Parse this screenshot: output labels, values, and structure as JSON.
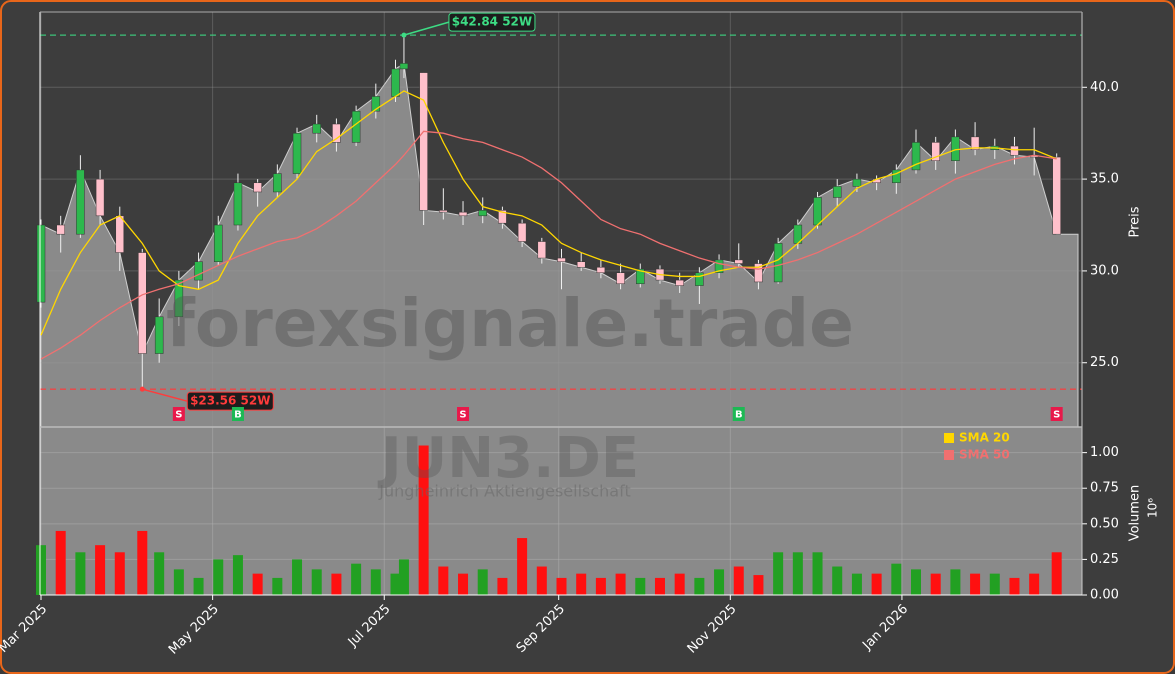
{
  "chart_data": [
    {
      "type": "candlestick",
      "watermark": "forexsignale.trade",
      "ticker": "JUN3.DE",
      "company": "Jungheinrich Aktiengesellschaft",
      "ylabel": "Preis",
      "x": [
        0,
        7,
        14,
        21,
        28,
        36,
        42,
        49,
        56,
        63,
        70,
        77,
        84,
        91,
        98,
        105,
        112,
        119,
        126,
        129,
        136,
        143,
        150,
        157,
        164,
        171,
        178,
        185,
        192,
        199,
        206,
        213,
        220,
        227,
        234,
        241,
        248,
        255,
        262,
        269,
        276,
        283,
        290,
        297,
        304,
        311,
        318,
        325,
        332,
        339,
        346,
        353,
        361
      ],
      "open": [
        28.3,
        32.5,
        32.0,
        35.0,
        33.0,
        31.0,
        25.5,
        27.5,
        29.5,
        30.5,
        32.5,
        34.8,
        34.3,
        35.3,
        37.5,
        38.0,
        37.0,
        38.7,
        39.5,
        41.0,
        40.8,
        33.3,
        33.2,
        33.0,
        33.3,
        32.6,
        31.6,
        30.7,
        30.5,
        30.2,
        29.9,
        29.3,
        30.1,
        29.5,
        29.2,
        29.9,
        30.6,
        30.4,
        29.4,
        31.5,
        32.5,
        34.0,
        34.6,
        35.0,
        34.8,
        35.5,
        37.0,
        36.0,
        37.3,
        36.6,
        36.8,
        36.3,
        36.2
      ],
      "high": [
        32.8,
        33.0,
        36.3,
        35.5,
        33.5,
        31.2,
        28.5,
        30.0,
        31.0,
        33.0,
        35.3,
        35.0,
        35.8,
        37.8,
        38.5,
        38.3,
        39.0,
        40.2,
        41.5,
        42.84,
        40.8,
        34.5,
        33.8,
        34.0,
        33.5,
        32.8,
        31.8,
        31.2,
        31.0,
        30.6,
        30.4,
        30.4,
        30.3,
        29.9,
        30.2,
        30.9,
        31.5,
        30.6,
        31.8,
        32.8,
        34.3,
        35.0,
        35.3,
        35.2,
        35.8,
        37.7,
        37.3,
        37.7,
        38.1,
        37.2,
        37.3,
        37.8,
        36.4
      ],
      "low": [
        28.0,
        31.0,
        31.8,
        32.5,
        30.0,
        23.56,
        25.0,
        27.0,
        29.0,
        30.3,
        32.2,
        33.5,
        34.0,
        35.0,
        37.0,
        36.5,
        36.8,
        38.3,
        39.2,
        40.5,
        32.5,
        32.8,
        32.5,
        32.6,
        32.3,
        31.3,
        30.4,
        29.0,
        30.0,
        29.6,
        29.0,
        29.1,
        29.3,
        28.8,
        28.2,
        29.6,
        30.2,
        29.0,
        29.3,
        31.2,
        32.3,
        33.5,
        34.3,
        34.4,
        34.2,
        35.3,
        35.5,
        35.3,
        36.3,
        36.1,
        35.8,
        35.2,
        32.0
      ],
      "close": [
        32.5,
        32.0,
        35.5,
        33.0,
        31.0,
        25.5,
        27.5,
        29.5,
        30.5,
        32.5,
        34.8,
        34.3,
        35.3,
        37.5,
        38.0,
        37.0,
        38.7,
        39.5,
        41.0,
        41.3,
        33.3,
        33.2,
        33.0,
        33.3,
        32.6,
        31.6,
        30.7,
        30.5,
        30.2,
        29.9,
        29.3,
        30.1,
        29.5,
        29.2,
        29.9,
        30.6,
        30.4,
        29.4,
        31.5,
        32.5,
        34.0,
        34.6,
        35.0,
        34.8,
        35.5,
        37.0,
        36.0,
        37.3,
        36.6,
        36.8,
        36.3,
        36.2,
        32.0
      ],
      "colors": {
        "up": "#2db84d",
        "down": "#ffc0cb"
      },
      "series": [
        {
          "name": "SMA 20",
          "color": "#ffd700",
          "values": [
            26.5,
            29,
            31,
            32.5,
            33,
            31.5,
            30,
            29.2,
            29,
            29.5,
            31.5,
            33,
            34,
            35,
            36.5,
            37.2,
            38,
            38.8,
            39.5,
            39.8,
            39.3,
            37,
            35,
            33.5,
            33.2,
            33,
            32.5,
            31.5,
            31,
            30.6,
            30.3,
            30,
            29.8,
            29.7,
            29.7,
            30,
            30.2,
            30.2,
            30.6,
            31.5,
            32.5,
            33.5,
            34.5,
            35,
            35.3,
            35.8,
            36.2,
            36.6,
            36.7,
            36.7,
            36.6,
            36.6,
            36.1
          ]
        },
        {
          "name": "SMA 50",
          "color": "#f07070",
          "values": [
            25.2,
            25.8,
            26.5,
            27.3,
            28,
            28.7,
            29,
            29.3,
            29.8,
            30.3,
            30.8,
            31.2,
            31.6,
            31.8,
            32.3,
            33,
            33.8,
            34.8,
            35.8,
            36.3,
            37.6,
            37.5,
            37.2,
            37,
            36.6,
            36.2,
            35.6,
            34.8,
            33.8,
            32.8,
            32.3,
            32,
            31.5,
            31.1,
            30.7,
            30.4,
            30.2,
            30.1,
            30.3,
            30.6,
            31,
            31.5,
            32,
            32.6,
            33.2,
            33.8,
            34.4,
            35,
            35.4,
            35.8,
            36.1,
            36.3,
            36.1
          ]
        }
      ],
      "annotations": [
        {
          "x": 129,
          "value": 42.84,
          "label": "$42.84 52W",
          "color": "#3ddc84"
        },
        {
          "x": 36,
          "value": 23.56,
          "label": "$23.56 52W",
          "color": "#ff3b3b"
        }
      ],
      "signals": [
        {
          "x": 49,
          "label": "S"
        },
        {
          "x": 70,
          "label": "B"
        },
        {
          "x": 150,
          "label": "S"
        },
        {
          "x": 248,
          "label": "B"
        },
        {
          "x": 361,
          "label": "S"
        }
      ],
      "xlim": [
        0,
        370
      ],
      "ylim": [
        21.5,
        44.1
      ],
      "yticks": [
        {
          "value": 25,
          "label": "25.0"
        },
        {
          "value": 30,
          "label": "30.0"
        },
        {
          "value": 35,
          "label": "35.0"
        },
        {
          "value": 40,
          "label": "40.0"
        }
      ],
      "grid": true
    },
    {
      "type": "bar",
      "ylabel": "Volumen",
      "scale_label": "10⁶",
      "x": [
        0,
        7,
        14,
        21,
        28,
        36,
        42,
        49,
        56,
        63,
        70,
        77,
        84,
        91,
        98,
        105,
        112,
        119,
        126,
        129,
        136,
        143,
        150,
        157,
        164,
        171,
        178,
        185,
        192,
        199,
        206,
        213,
        220,
        227,
        234,
        241,
        248,
        255,
        262,
        269,
        276,
        283,
        290,
        297,
        304,
        311,
        318,
        325,
        332,
        339,
        346,
        353,
        361
      ],
      "values": [
        0.35,
        0.45,
        0.3,
        0.35,
        0.3,
        0.45,
        0.3,
        0.18,
        0.12,
        0.25,
        0.28,
        0.15,
        0.12,
        0.25,
        0.18,
        0.15,
        0.22,
        0.18,
        0.15,
        0.25,
        1.05,
        0.2,
        0.15,
        0.18,
        0.12,
        0.4,
        0.2,
        0.12,
        0.15,
        0.12,
        0.15,
        0.12,
        0.12,
        0.15,
        0.12,
        0.18,
        0.2,
        0.14,
        0.3,
        0.3,
        0.3,
        0.2,
        0.15,
        0.15,
        0.22,
        0.18,
        0.15,
        0.18,
        0.15,
        0.15,
        0.12,
        0.15,
        0.3
      ],
      "colors": {
        "up": "#22a022",
        "down": "#ff1010"
      },
      "xlim": [
        0,
        370
      ],
      "xticks": [
        {
          "value": 0,
          "label": "Mar 2025"
        },
        {
          "value": 61,
          "label": "May 2025"
        },
        {
          "value": 122,
          "label": "Jul 2025"
        },
        {
          "value": 184,
          "label": "Sep 2025"
        },
        {
          "value": 245,
          "label": "Nov 2025"
        },
        {
          "value": 306,
          "label": "Jan 2026"
        }
      ],
      "ylim": [
        0,
        1.18
      ],
      "yticks": [
        {
          "value": 0,
          "label": "0.00"
        },
        {
          "value": 0.25,
          "label": "0.25"
        },
        {
          "value": 0.5,
          "label": "0.50"
        },
        {
          "value": 0.75,
          "label": "0.75"
        },
        {
          "value": 1,
          "label": "1.00"
        }
      ],
      "grid": true
    }
  ]
}
